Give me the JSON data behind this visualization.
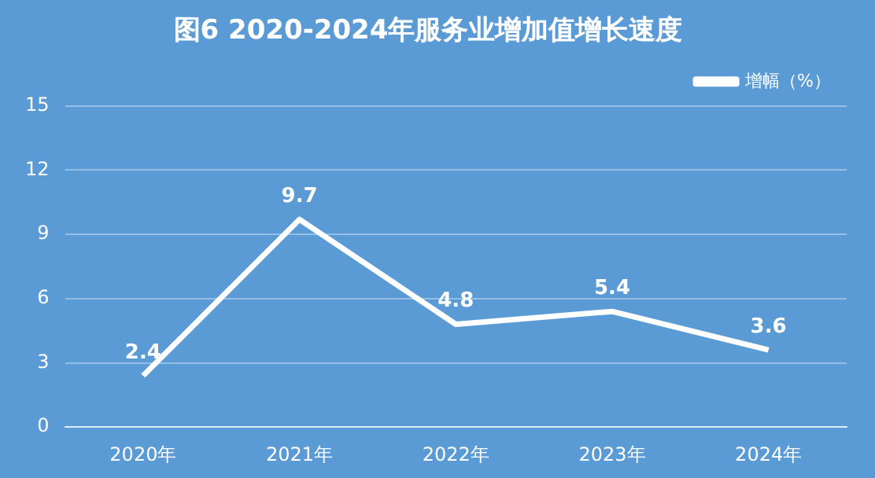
{
  "chart_data": {
    "type": "line",
    "title": "图6 2020-2024年服务业增加值增长速度",
    "categories": [
      "2020年",
      "2021年",
      "2022年",
      "2023年",
      "2024年"
    ],
    "series": [
      {
        "name": "增幅（%）",
        "color": "#ffffff",
        "values": [
          2.4,
          9.7,
          4.8,
          5.4,
          3.6
        ]
      }
    ],
    "ylim": [
      0,
      15
    ],
    "yticks": [
      0,
      3,
      6,
      9,
      12,
      15
    ],
    "grid": "y",
    "legend": "top right",
    "marker": "none",
    "line_style": "solid",
    "data_labels": true
  }
}
